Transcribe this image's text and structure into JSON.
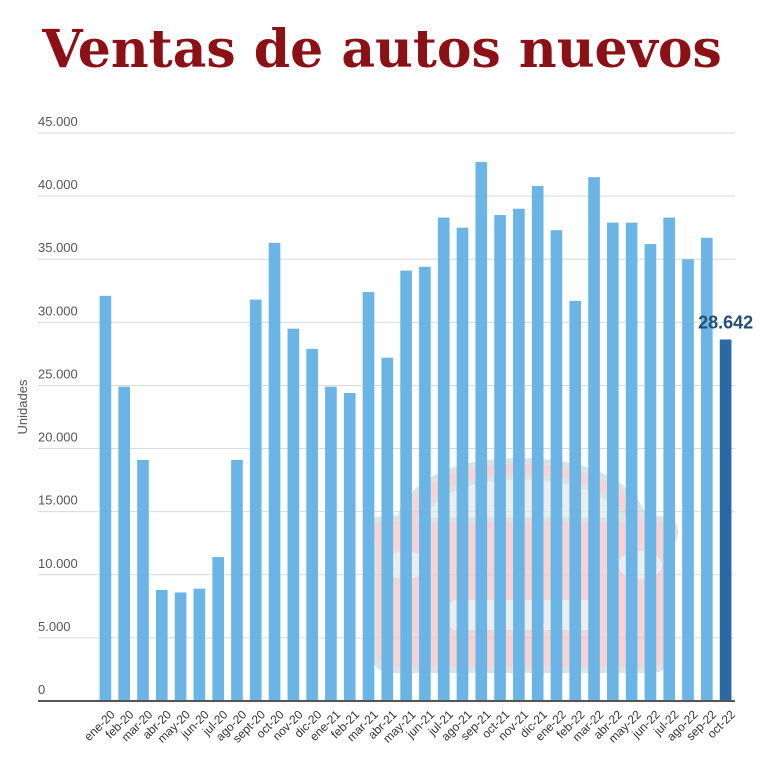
{
  "colors": {
    "title": "#8b1117",
    "bar": "#6bb5e6",
    "bar_highlight": "#2a69a3",
    "highlight_label": "#1f4f7a",
    "grid": "#d9d9d9",
    "axis": "#555555",
    "tick_text": "#555555",
    "watermark_fill": "#f5c6c6",
    "watermark_stroke": "#d7d7d7"
  },
  "watermark": {
    "icon": "car-icon"
  },
  "chart_data": {
    "type": "bar",
    "title": "Ventas de autos nuevos",
    "xlabel": "",
    "ylabel": "Unidades",
    "ylim": [
      0,
      45000
    ],
    "ytick_labels": [
      "0",
      "5.000",
      "10.000",
      "15.000",
      "20.000",
      "25.000",
      "30.000",
      "35.000",
      "40.000",
      "45.000"
    ],
    "grid": true,
    "categories": [
      "ene-20",
      "feb-20",
      "mar-20",
      "abr-20",
      "may-20",
      "jun-20",
      "jul-20",
      "ago-20",
      "sept-20",
      "oct-20",
      "nov-20",
      "dic-20",
      "ene-21",
      "feb-21",
      "mar-21",
      "abr-21",
      "may-21",
      "jun-21",
      "jul-21",
      "ago-21",
      "sep-21",
      "oct-21",
      "nov-21",
      "dic-21",
      "ene-22",
      "feb-22",
      "mar-22",
      "abr-22",
      "may-22",
      "jun-22",
      "jul-22",
      "ago-22",
      "sep-22",
      "oct-22"
    ],
    "values": [
      32100,
      24900,
      19100,
      8800,
      8600,
      8900,
      11400,
      19100,
      31800,
      36300,
      29500,
      27900,
      24900,
      24400,
      32400,
      27200,
      34100,
      34400,
      38300,
      37500,
      42700,
      38500,
      39000,
      40800,
      37300,
      31700,
      41500,
      37900,
      37900,
      36200,
      38300,
      35000,
      36700,
      28642
    ],
    "highlight_index": 33,
    "annotations": [
      {
        "category": "oct-22",
        "text": "28.642"
      }
    ]
  }
}
